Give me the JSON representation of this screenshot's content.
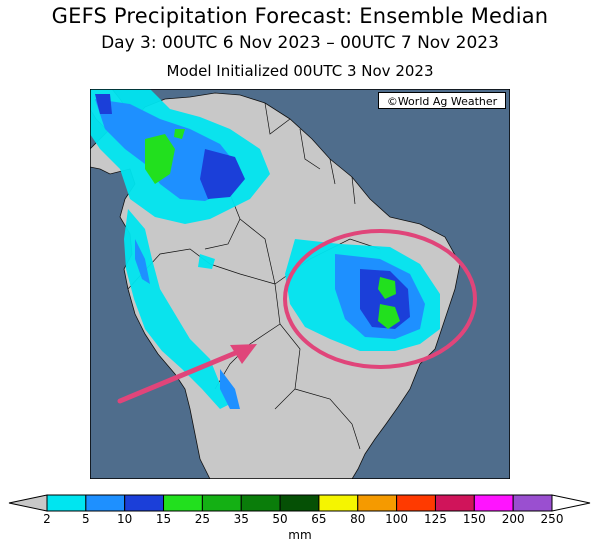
{
  "header": {
    "title": "GEFS Precipitation Forecast: Ensemble Median",
    "period": "Day 3: 00UTC 6 Nov 2023 – 00UTC 7 Nov 2023",
    "init": "Model Initialized 00UTC 3 Nov 2023"
  },
  "map": {
    "credit": "©World Ag Weather",
    "ocean_color": "#4f6d8c",
    "land_color": "#c8c8c8",
    "highlight_color": "#e0457a"
  },
  "legend": {
    "unit": "mm",
    "ticks": [
      "2",
      "5",
      "10",
      "15",
      "25",
      "35",
      "50",
      "65",
      "80",
      "100",
      "125",
      "150",
      "200",
      "250"
    ],
    "colors": [
      "#00e5f0",
      "#1e90ff",
      "#1b3fd9",
      "#22e01e",
      "#14b014",
      "#0a7d0a",
      "#055005",
      "#f5f500",
      "#f59a00",
      "#ff3a00",
      "#d0145a",
      "#ff14ff",
      "#9a4fd0"
    ]
  }
}
